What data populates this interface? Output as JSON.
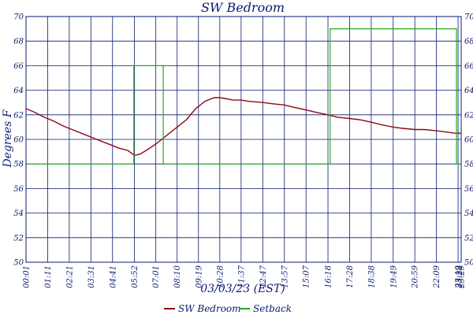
{
  "colors": {
    "frame": "#0b1a6e",
    "grid": "#0b1a6e",
    "text": "#0b1a6e",
    "background": "#ffffff",
    "series": [
      "#8b0a14",
      "#22aa22"
    ]
  },
  "chart_data": {
    "type": "line",
    "title": "SW Bedroom",
    "xlabel": "03/03/23 (EST)",
    "ylabel": "Degrees F",
    "ylim": [
      50,
      70
    ],
    "y_ticks": [
      50,
      52,
      54,
      56,
      58,
      60,
      62,
      64,
      66,
      68,
      70
    ],
    "x_ticks": [
      "00:01",
      "01:11",
      "02:21",
      "03:31",
      "04:41",
      "05:52",
      "07:01",
      "08:10",
      "09:19",
      "10:28",
      "11:37",
      "12:47",
      "13:57",
      "15:07",
      "16:18",
      "17:28",
      "18:38",
      "19:49",
      "20:59",
      "22:09",
      "23:19",
      "23:22",
      "23:29"
    ],
    "grid": true,
    "legend": "bottom-center",
    "series": [
      {
        "name": "SW Bedroom",
        "x": [
          "00:01",
          "00:30",
          "01:00",
          "01:30",
          "02:00",
          "02:30",
          "03:00",
          "03:30",
          "04:00",
          "04:30",
          "05:00",
          "05:30",
          "05:52",
          "06:10",
          "06:30",
          "07:00",
          "07:20",
          "07:45",
          "08:10",
          "08:40",
          "09:10",
          "09:40",
          "10:10",
          "10:28",
          "10:50",
          "11:10",
          "11:37",
          "12:00",
          "12:47",
          "13:20",
          "13:57",
          "14:30",
          "15:07",
          "15:40",
          "16:18",
          "16:50",
          "17:28",
          "18:00",
          "18:38",
          "19:10",
          "19:49",
          "20:20",
          "20:59",
          "21:30",
          "22:09",
          "22:40",
          "23:10",
          "23:29"
        ],
        "values": [
          62.5,
          62.2,
          61.8,
          61.5,
          61.1,
          60.8,
          60.5,
          60.2,
          59.9,
          59.6,
          59.3,
          59.1,
          58.7,
          58.8,
          59.1,
          59.6,
          60.0,
          60.5,
          61.0,
          61.6,
          62.5,
          63.1,
          63.4,
          63.4,
          63.3,
          63.2,
          63.2,
          63.1,
          63.0,
          62.9,
          62.8,
          62.6,
          62.4,
          62.2,
          62.0,
          61.8,
          61.7,
          61.6,
          61.4,
          61.2,
          61.0,
          60.9,
          60.8,
          60.8,
          60.7,
          60.6,
          60.5,
          60.5
        ]
      },
      {
        "name": "Setback",
        "x": [
          "00:01",
          "05:50",
          "05:50",
          "07:25",
          "07:25",
          "16:25",
          "16:25",
          "23:14",
          "23:14",
          "23:29"
        ],
        "values": [
          58,
          58,
          66,
          66,
          58,
          58,
          69,
          69,
          58,
          58
        ]
      }
    ]
  }
}
